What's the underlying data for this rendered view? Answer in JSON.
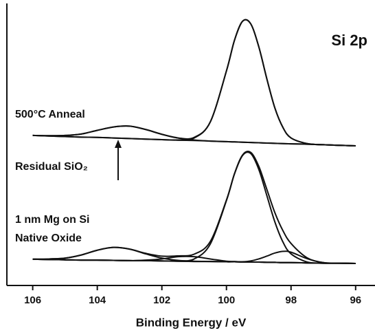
{
  "chart_data": {
    "type": "line",
    "xlabel": "Binding Energy / eV",
    "annotations": [
      "Si 2p",
      "500°C Anneal",
      "Residual SiO₂",
      "1 nm Mg on Si",
      "Native Oxide"
    ],
    "x": [
      106,
      105.5,
      105,
      104.5,
      104,
      103.5,
      103,
      102.5,
      102,
      101.5,
      101,
      100.5,
      100,
      99.75,
      99.5,
      99.25,
      99,
      98.75,
      98.5,
      98.25,
      98,
      97.5,
      97,
      96.5,
      96
    ],
    "series": [
      {
        "color": "#111111",
        "values": [
          53.2,
          53.0,
          52.8,
          52.6,
          52.5,
          52.3,
          52.1,
          51.9,
          51.7,
          51.5,
          51.4,
          51.2,
          51.0,
          50.9,
          50.8,
          50.7,
          50.6,
          50.5,
          50.4,
          50.3,
          50.2,
          50.1,
          49.9,
          49.7,
          49.5
        ]
      },
      {
        "color": "#111111",
        "values": [
          53.2,
          53.1,
          53.2,
          53.7,
          55.0,
          56.2,
          56.5,
          55.3,
          53.6,
          52.3,
          51.6,
          51.2,
          51.0,
          50.9,
          50.8,
          50.7,
          50.6,
          50.5,
          50.4,
          50.3,
          50.2,
          50.1,
          49.9,
          49.7,
          49.5
        ]
      },
      {
        "color": "#111111",
        "values": [
          53.2,
          53.0,
          52.8,
          52.6,
          52.5,
          52.3,
          52.1,
          51.9,
          51.7,
          51.6,
          52.3,
          58.0,
          76.1,
          87.0,
          93.7,
          92.8,
          84.7,
          73.3,
          62.9,
          56.0,
          52.3,
          50.3,
          49.9,
          49.7,
          49.5
        ]
      },
      {
        "color": "#111111",
        "values": [
          53.2,
          53.1,
          53.2,
          53.7,
          55.0,
          56.2,
          56.5,
          55.3,
          53.6,
          52.3,
          52.5,
          58.0,
          76.1,
          87.0,
          93.7,
          92.8,
          84.7,
          73.3,
          62.9,
          56.0,
          52.3,
          50.3,
          49.9,
          49.7,
          49.5
        ]
      },
      {
        "color": "#111111",
        "values": [
          9.3,
          9.2,
          9.1,
          9.0,
          9.0,
          8.9,
          8.8,
          8.8,
          8.7,
          8.6,
          8.5,
          8.5,
          8.4,
          8.4,
          8.3,
          8.3,
          8.3,
          8.2,
          8.2,
          8.1,
          8.1,
          8.0,
          7.9,
          7.9,
          7.8
        ]
      },
      {
        "color": "#111111",
        "values": [
          9.3,
          9.4,
          9.7,
          10.8,
          12.5,
          13.5,
          12.9,
          11.2,
          9.7,
          8.9,
          8.6,
          8.5,
          8.4,
          8.4,
          8.3,
          8.3,
          8.3,
          8.2,
          8.2,
          8.1,
          8.1,
          8.0,
          7.9,
          7.9,
          7.8
        ]
      },
      {
        "color": "#111111",
        "values": [
          9.3,
          9.2,
          9.1,
          9.0,
          9.0,
          8.9,
          8.8,
          9.0,
          9.4,
          10.2,
          10.2,
          9.4,
          8.6,
          8.5,
          8.3,
          8.3,
          8.3,
          8.2,
          8.2,
          8.1,
          8.1,
          8.0,
          7.9,
          7.9,
          7.8
        ]
      },
      {
        "color": "#111111",
        "values": [
          9.3,
          9.2,
          9.1,
          9.0,
          9.0,
          8.9,
          8.8,
          8.8,
          8.7,
          8.7,
          9.4,
          14.7,
          30.1,
          39.6,
          46.1,
          46.8,
          41.2,
          31.9,
          22.5,
          15.4,
          11.2,
          8.3,
          7.9,
          7.9,
          7.8
        ]
      },
      {
        "color": "#111111",
        "values": [
          9.3,
          9.2,
          9.1,
          9.0,
          9.0,
          8.9,
          8.8,
          8.8,
          8.7,
          8.6,
          8.5,
          8.5,
          8.4,
          8.4,
          8.4,
          8.7,
          9.4,
          10.4,
          11.5,
          12.1,
          11.8,
          9.5,
          8.1,
          7.9,
          7.8
        ]
      },
      {
        "color": "#111111",
        "values": [
          9.3,
          9.4,
          9.7,
          10.8,
          12.5,
          13.5,
          12.9,
          11.4,
          10.4,
          10.5,
          11.1,
          15.6,
          30.3,
          39.7,
          46.3,
          47.2,
          42.3,
          34.1,
          25.8,
          19.4,
          14.9,
          9.8,
          8.1,
          7.9,
          7.8
        ]
      }
    ],
    "xlim": [
      106.8,
      95.4
    ],
    "xticks": [
      106,
      104,
      102,
      100,
      98,
      96
    ],
    "ylim": [
      0,
      100
    ],
    "grid": false
  }
}
